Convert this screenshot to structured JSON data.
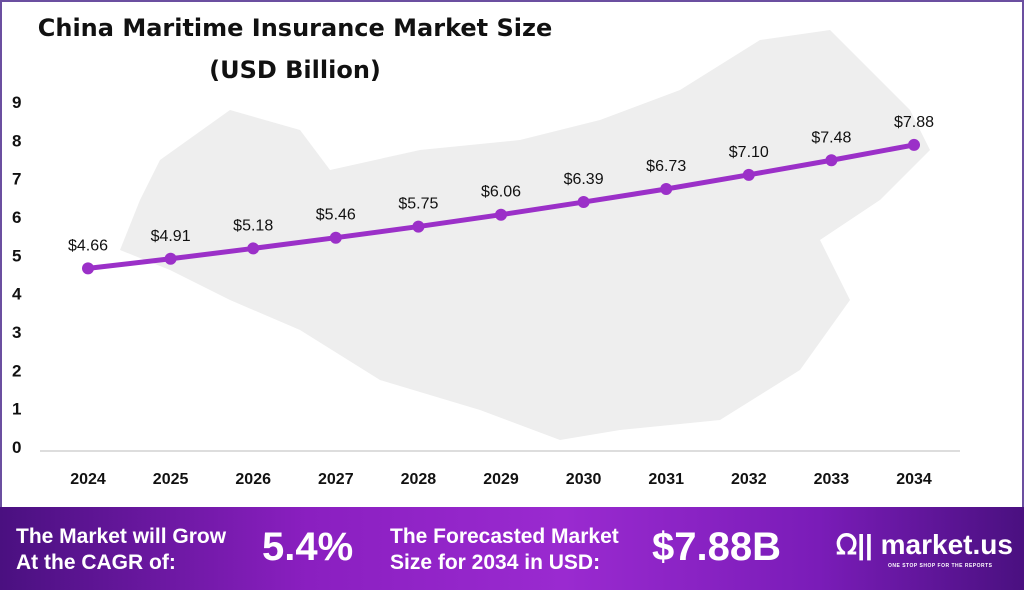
{
  "chart_data": {
    "type": "line",
    "title": "China Maritime Insurance Market Size",
    "subtitle": "(USD Billion)",
    "categories": [
      "2024",
      "2025",
      "2026",
      "2027",
      "2028",
      "2029",
      "2030",
      "2031",
      "2032",
      "2033",
      "2034"
    ],
    "values": [
      4.66,
      4.91,
      5.18,
      5.46,
      5.75,
      6.06,
      6.39,
      6.73,
      7.1,
      7.48,
      7.88
    ],
    "data_labels": [
      "$4.66",
      "$4.91",
      "$5.18",
      "$5.46",
      "$5.75",
      "$6.06",
      "$6.39",
      "$6.73",
      "$7.10",
      "$7.48",
      "$7.88"
    ],
    "yticks": [
      "0",
      "1",
      "2",
      "3",
      "4",
      "5",
      "6",
      "7",
      "8",
      "9"
    ],
    "ylim": [
      0,
      9
    ],
    "grid": false,
    "line_color": "#9b30c8"
  },
  "footer": {
    "cagr_label_1": "The Market will Grow",
    "cagr_label_2": "At the CAGR of:",
    "cagr_value": "5.4%",
    "forecast_label_1": "The Forecasted Market",
    "forecast_label_2": "Size for 2034 in USD:",
    "forecast_value": "$7.88B",
    "brand": "market.us",
    "tagline": "ONE STOP SHOP FOR THE REPORTS"
  }
}
